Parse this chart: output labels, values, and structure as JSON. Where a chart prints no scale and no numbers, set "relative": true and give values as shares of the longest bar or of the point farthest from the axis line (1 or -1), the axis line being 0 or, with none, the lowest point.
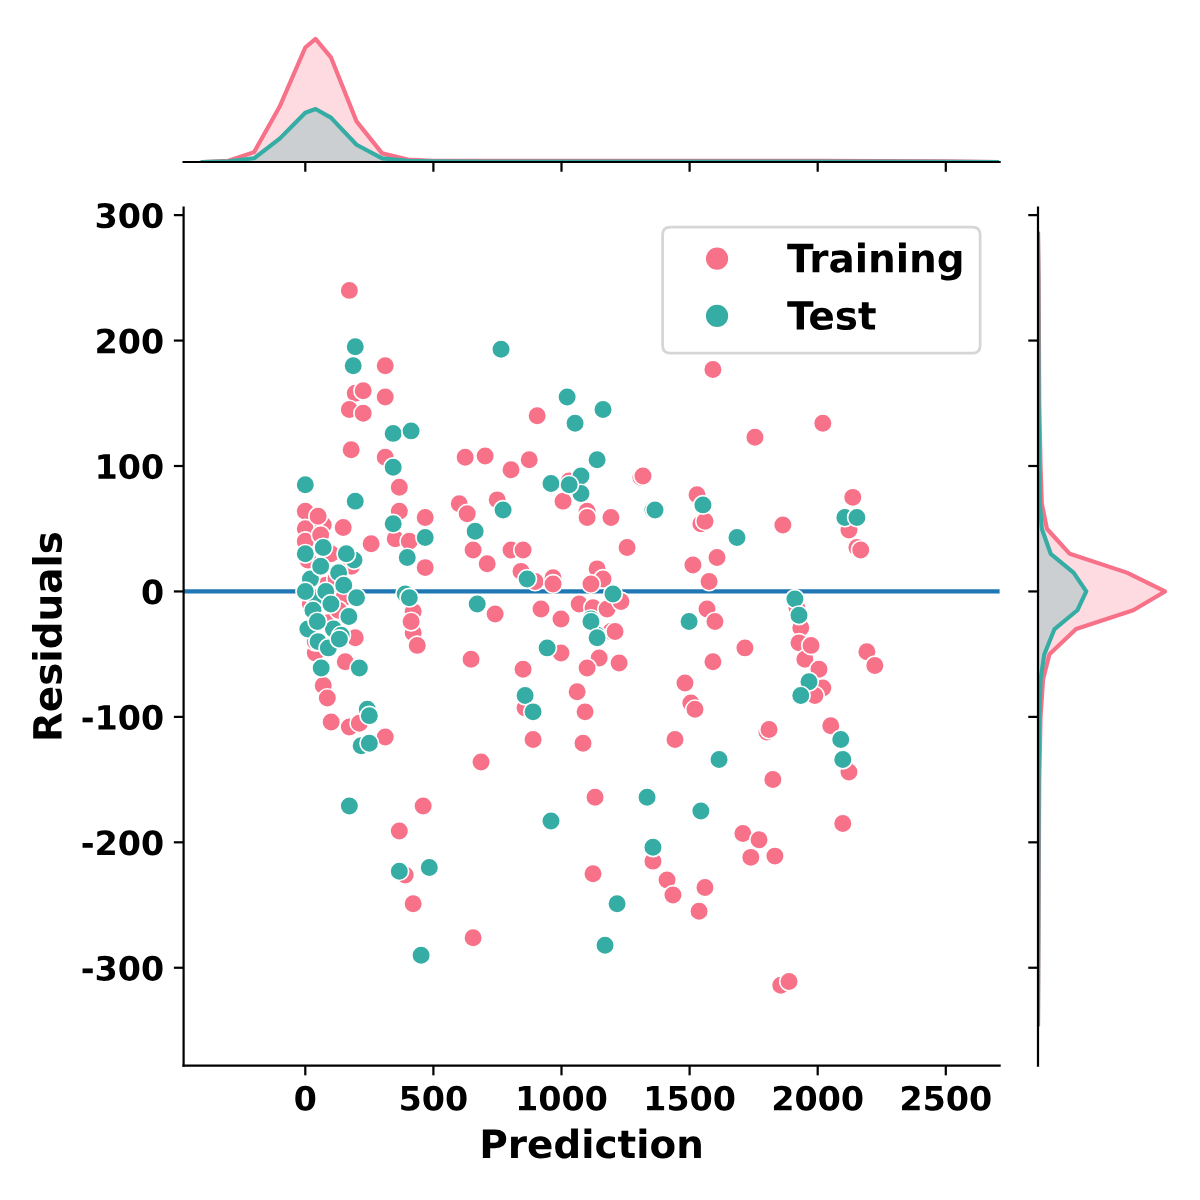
{
  "chart_data": [
    {
      "type": "area",
      "relative": true,
      "tick_labels": false,
      "xlim": [
        -475,
        2710
      ],
      "xticks": [
        0,
        500,
        1000,
        1500,
        2000,
        2500
      ],
      "x": [
        -400,
        -300,
        -200,
        -100,
        0,
        40,
        100,
        200,
        300,
        400,
        500,
        700,
        1000,
        1500,
        2000,
        2500,
        2700
      ],
      "series": [
        {
          "color": "#f77189",
          "values": [
            0,
            0.01,
            0.08,
            0.45,
            0.93,
            1,
            0.85,
            0.33,
            0.07,
            0.02,
            0.01,
            0.01,
            0.01,
            0.01,
            0.01,
            0.005,
            0
          ]
        },
        {
          "color": "#36ada4",
          "values": [
            0,
            0.005,
            0.03,
            0.19,
            0.4,
            0.43,
            0.36,
            0.14,
            0.03,
            0.01,
            0.005,
            0.003,
            0.003,
            0.003,
            0.003,
            0.002,
            0
          ]
        }
      ]
    },
    {
      "type": "scatter",
      "xlabel": "Prediction",
      "ylabel": "Residuals",
      "xlim": [
        -475,
        2710
      ],
      "ylim": [
        -378,
        306
      ],
      "xticks": [
        0,
        500,
        1000,
        1500,
        2000,
        2500
      ],
      "yticks": [
        -300,
        -200,
        -100,
        0,
        100,
        200,
        300
      ],
      "legend": "top right",
      "marker": "circle",
      "grid": false,
      "ref_lines": [
        {
          "axis": "y",
          "value": 0,
          "color": "#1f77b4"
        }
      ],
      "series": [
        {
          "name": "Training",
          "color": "#f77189",
          "x": [
            172,
            312,
            195,
            226,
            172,
            226,
            312,
            179,
            312,
            367,
            367,
            0,
            0,
            70,
            148,
            257,
            351,
            406,
            468,
            468,
            624,
            702,
            601,
            632,
            749,
            803,
            874,
            905,
            655,
            710,
            803,
            850,
            842,
            897,
            967,
            967,
            1006,
            1030,
            1100,
            1100,
            1193,
            1256,
            1310,
            1139,
            1162,
            1115,
            741,
            920,
            998,
            1069,
            1123,
            1178,
            1232,
            1193,
            421,
            1591,
            1755,
            2020,
            1318,
            1529,
            1544,
            1560,
            1864,
            2137,
            2122,
            2153,
            2168,
            1513,
            1607,
            1576,
            1568,
            1599,
            1919,
            1934,
            1716,
            1591,
            1482,
            1505,
            1521,
            1443,
            1802,
            1810,
            1825,
            1708,
            1771,
            1739,
            1833,
            2098,
            2122,
            2051,
            1927,
            1950,
            2005,
            1974,
            2020,
            1989,
            2192,
            2223,
            1357,
            1412,
            1435,
            1560,
            1537,
            1856,
            1888,
            1209,
            1147,
            1100,
            1225,
            998,
            1061,
            1092,
            1084,
            850,
            858,
            889,
            647,
            686,
            1131,
            1123,
            421,
            437,
            413,
            195,
            156,
            70,
            86,
            101,
            172,
            211,
            312,
            460,
            367,
            390,
            421,
            655,
            39,
            39,
            0,
            100,
            150,
            80,
            20,
            120,
            50,
            10,
            90,
            130,
            180,
            60
          ],
          "values": [
            240,
            180,
            158,
            160,
            145,
            142,
            155,
            113,
            107,
            83,
            64,
            64,
            50,
            53,
            51,
            38,
            42,
            40,
            59,
            19,
            107,
            108,
            70,
            62,
            73,
            97,
            105,
            140,
            33,
            22,
            33,
            33,
            16,
            8,
            11,
            6,
            72,
            88,
            64,
            59,
            59,
            35,
            91,
            18,
            10,
            6,
            -18,
            -14,
            -22,
            -10,
            -13,
            -14,
            -8,
            -32,
            -16,
            177,
            123,
            134,
            92,
            77,
            54,
            56,
            53,
            75,
            49,
            35,
            33,
            21,
            27,
            8,
            -14,
            -24,
            -13,
            -29,
            -45,
            -56,
            -73,
            -89,
            -94,
            -118,
            -112,
            -110,
            -150,
            -193,
            -198,
            -212,
            -211,
            -185,
            -144,
            -107,
            -41,
            -54,
            -62,
            -43,
            -77,
            -83,
            -48,
            -59,
            -215,
            -230,
            -242,
            -236,
            -255,
            -314,
            -311,
            -32,
            -53,
            -61,
            -57,
            -49,
            -80,
            -96,
            -121,
            -62,
            -93,
            -118,
            -54,
            -136,
            -164,
            -225,
            -33,
            -43,
            -24,
            -37,
            -56,
            -75,
            -85,
            -104,
            -108,
            -105,
            -116,
            -171,
            -191,
            -226,
            -249,
            -276,
            -49,
            -40,
            40,
            30,
            -5,
            5,
            -10,
            10,
            60,
            25,
            -25,
            -15,
            20,
            45
          ]
        },
        {
          "name": "Test",
          "color": "#36ada4",
          "x": [
            195,
            187,
            343,
            413,
            343,
            764,
            1022,
            1053,
            1162,
            1139,
            959,
            1076,
            1076,
            1030,
            1357,
            772,
            663,
            195,
            0,
            343,
            468,
            398,
            866,
            671,
            1115,
            1201,
            1139,
            390,
            406,
            0,
            20,
            40,
            60,
            80,
            100,
            130,
            150,
            170,
            190,
            10,
            50,
            110,
            160,
            0,
            30,
            70,
            200,
            90,
            140,
            944,
            858,
            889,
            1115,
            1139,
            133,
            62,
            211,
            242,
            250,
            218,
            250,
            172,
            367,
            484,
            452,
            959,
            1217,
            1170,
            1334,
            1357,
            47,
            1365,
            1552,
            1685,
            2106,
            2153,
            1911,
            1927,
            1498,
            1966,
            1934,
            2090,
            2098,
            1615,
            1544
          ],
          "values": [
            195,
            180,
            126,
            128,
            99,
            193,
            155,
            134,
            145,
            105,
            86,
            92,
            78,
            85,
            65,
            65,
            48,
            72,
            85,
            54,
            43,
            27,
            10,
            -10,
            -22,
            -2,
            -35,
            -2,
            -5,
            30,
            10,
            -5,
            20,
            0,
            -10,
            15,
            5,
            -20,
            25,
            -30,
            -40,
            -30,
            30,
            0,
            -15,
            35,
            -5,
            -45,
            -35,
            -45,
            -83,
            -96,
            -24,
            -37,
            -38,
            -61,
            -61,
            -94,
            -99,
            -123,
            -121,
            -171,
            -223,
            -220,
            -290,
            -183,
            -249,
            -282,
            -164,
            -204,
            -24,
            65,
            69,
            43,
            59,
            59,
            -6,
            -19,
            -24,
            -72,
            -83,
            -118,
            -134,
            -134,
            -175
          ]
        }
      ]
    },
    {
      "type": "area",
      "relative": true,
      "orientation": "horizontal",
      "tick_labels": false,
      "ylim": [
        -378,
        306
      ],
      "yticks": [
        -300,
        -200,
        -100,
        0,
        100,
        200,
        300
      ],
      "x": [
        -345,
        -250,
        -150,
        -100,
        -70,
        -50,
        -30,
        -15,
        0,
        15,
        30,
        50,
        70,
        100,
        150,
        250,
        285
      ],
      "series": [
        {
          "color": "#f77189",
          "values": [
            0,
            0.005,
            0.01,
            0.02,
            0.04,
            0.09,
            0.3,
            0.75,
            1,
            0.7,
            0.25,
            0.07,
            0.03,
            0.02,
            0.01,
            0.005,
            0
          ]
        },
        {
          "color": "#36ada4",
          "values": [
            0,
            0.003,
            0.005,
            0.01,
            0.02,
            0.05,
            0.13,
            0.31,
            0.38,
            0.28,
            0.1,
            0.03,
            0.015,
            0.01,
            0.005,
            0.002,
            0
          ]
        }
      ]
    }
  ]
}
